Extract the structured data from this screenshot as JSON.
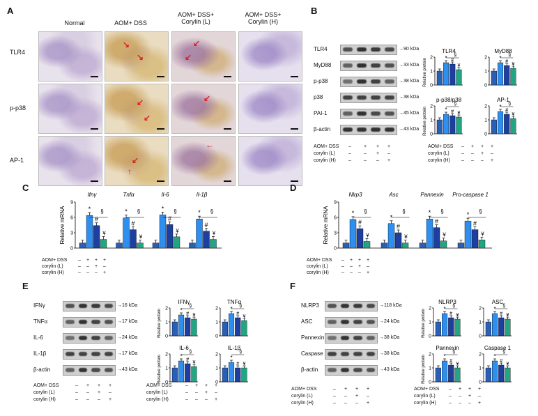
{
  "panels": {
    "A": "A",
    "B": "B",
    "C": "C",
    "D": "D",
    "E": "E",
    "F": "F"
  },
  "panelA": {
    "columns": [
      "Normal",
      "AOM+ DSS",
      "AOM+ DSS+ Corylin (L)",
      "AOM+ DSS+ Corylin (H)"
    ],
    "rows": [
      "TLR4",
      "p-p38",
      "AP-1"
    ]
  },
  "panelB": {
    "blots": [
      {
        "name": "TLR4",
        "kda": "90 kDa"
      },
      {
        "name": "MyD88",
        "kda": "33 kDa"
      },
      {
        "name": "p-p38",
        "kda": "38 kDa"
      },
      {
        "name": "p38",
        "kda": "38 kDa"
      },
      {
        "name": "PAI-1",
        "kda": "45 kDa"
      },
      {
        "name": "β-actin",
        "kda": "43 kDa"
      }
    ]
  },
  "panelE": {
    "blots": [
      {
        "name": "IFNγ",
        "kda": "16 kDa"
      },
      {
        "name": "TNFα",
        "kda": "17 kDa"
      },
      {
        "name": "IL-6",
        "kda": "24 kDa"
      },
      {
        "name": "IL-1β",
        "kda": "17 kDa"
      },
      {
        "name": "β-actin",
        "kda": "43 kDa"
      }
    ]
  },
  "panelF": {
    "blots": [
      {
        "name": "NLRP3",
        "kda": "118 kDa"
      },
      {
        "name": "ASC",
        "kda": "24 kDa"
      },
      {
        "name": "Pannexin",
        "kda": "38 kDa"
      },
      {
        "name": "Caspase 1",
        "kda": "38 kDa"
      },
      {
        "name": "β-actin",
        "kda": "43 kDa"
      }
    ]
  },
  "treatment": {
    "labels": [
      "AOM+ DSS",
      "corylin (L)",
      "corylin (H)"
    ],
    "signs": [
      [
        "–",
        "+",
        "+",
        "+"
      ],
      [
        "–",
        "–",
        "+",
        "–"
      ],
      [
        "–",
        "–",
        "–",
        "+"
      ]
    ]
  },
  "mrna_ylabel": "Relative mRNA",
  "protein_ylabel": "Relative protein",
  "sig": {
    "star": "*",
    "hash": "#",
    "yen": "¥",
    "sect": "§"
  },
  "colors": [
    "#2a5fb8",
    "#2f8fef",
    "#1d3fa0",
    "#23a583"
  ],
  "chart_data": [
    {
      "id": "B-TLR4",
      "type": "bar",
      "title": "TLR4",
      "categories": [
        "Normal",
        "AOM+DSS",
        "corylin (L)",
        "corylin (H)"
      ],
      "values": [
        1.0,
        1.6,
        1.5,
        1.1
      ],
      "ylim": [
        0,
        2
      ],
      "yticks": [
        0,
        1,
        2
      ]
    },
    {
      "id": "B-MyD88",
      "type": "bar",
      "title": "MyD88",
      "categories": [
        "Normal",
        "AOM+DSS",
        "corylin (L)",
        "corylin (H)"
      ],
      "values": [
        1.0,
        1.6,
        1.4,
        1.2
      ],
      "ylim": [
        0,
        2
      ],
      "yticks": [
        0,
        1,
        2
      ]
    },
    {
      "id": "B-pp38",
      "type": "bar",
      "title": "p-p38/p38",
      "categories": [
        "Normal",
        "AOM+DSS",
        "corylin (L)",
        "corylin (H)"
      ],
      "values": [
        1.0,
        1.4,
        1.3,
        1.2
      ],
      "ylim": [
        0,
        2
      ],
      "yticks": [
        0,
        1,
        2
      ]
    },
    {
      "id": "B-AP1",
      "type": "bar",
      "title": "AP-1",
      "categories": [
        "Normal",
        "AOM+DSS",
        "corylin (L)",
        "corylin (H)"
      ],
      "values": [
        1.0,
        1.6,
        1.4,
        1.1
      ],
      "ylim": [
        0,
        2
      ],
      "yticks": [
        0,
        1,
        2
      ]
    },
    {
      "id": "C",
      "type": "bar",
      "categories": [
        "Ifnγ",
        "Tnfα",
        "Il-6",
        "Il-1β"
      ],
      "series": [
        {
          "values": [
            1.0,
            6.4,
            4.4,
            1.7
          ]
        },
        {
          "values": [
            1.0,
            5.9,
            3.6,
            1.0
          ]
        },
        {
          "values": [
            1.0,
            6.5,
            4.6,
            2.2
          ]
        },
        {
          "values": [
            1.0,
            5.7,
            3.3,
            1.7
          ]
        }
      ],
      "ylim": [
        0,
        9
      ],
      "yticks": [
        0,
        3,
        6,
        9
      ]
    },
    {
      "id": "D",
      "type": "bar",
      "categories": [
        "Nlrp3",
        "Asc",
        "Pannexin",
        "Pro-caspase 1"
      ],
      "series": [
        {
          "values": [
            1.0,
            5.6,
            3.8,
            1.3
          ]
        },
        {
          "values": [
            1.0,
            4.8,
            3.0,
            1.0
          ]
        },
        {
          "values": [
            1.0,
            5.7,
            4.0,
            1.4
          ]
        },
        {
          "values": [
            1.0,
            5.3,
            3.6,
            1.6
          ]
        }
      ],
      "ylim": [
        0,
        9
      ],
      "yticks": [
        0,
        3,
        6,
        9
      ]
    },
    {
      "id": "E-IFNg",
      "type": "bar",
      "title": "IFNγ",
      "categories": [
        "Normal",
        "AOM+DSS",
        "corylin (L)",
        "corylin (H)"
      ],
      "values": [
        1.0,
        1.5,
        1.3,
        1.2
      ],
      "ylim": [
        0,
        2
      ],
      "yticks": [
        0,
        1,
        2
      ]
    },
    {
      "id": "E-TNFa",
      "type": "bar",
      "title": "TNFα",
      "categories": [
        "Normal",
        "AOM+DSS",
        "corylin (L)",
        "corylin (H)"
      ],
      "values": [
        1.0,
        1.6,
        1.3,
        1.1
      ],
      "ylim": [
        0,
        2
      ],
      "yticks": [
        0,
        1,
        2
      ]
    },
    {
      "id": "E-IL6",
      "type": "bar",
      "title": "IL-6",
      "categories": [
        "Normal",
        "AOM+DSS",
        "corylin (L)",
        "corylin (H)"
      ],
      "values": [
        1.0,
        1.5,
        1.3,
        1.1
      ],
      "ylim": [
        0,
        2
      ],
      "yticks": [
        0,
        1,
        2
      ]
    },
    {
      "id": "E-IL1b",
      "type": "bar",
      "title": "IL-1β",
      "categories": [
        "Normal",
        "AOM+DSS",
        "corylin (L)",
        "corylin (H)"
      ],
      "values": [
        1.0,
        1.4,
        1.0,
        1.0
      ],
      "ylim": [
        0,
        2
      ],
      "yticks": [
        0,
        1,
        2
      ]
    },
    {
      "id": "F-NLRP3",
      "type": "bar",
      "title": "NLRP3",
      "categories": [
        "Normal",
        "AOM+DSS",
        "corylin (L)",
        "corylin (H)"
      ],
      "values": [
        1.0,
        1.6,
        1.3,
        1.2
      ],
      "ylim": [
        0,
        2
      ],
      "yticks": [
        0,
        1,
        2
      ]
    },
    {
      "id": "F-ASC",
      "type": "bar",
      "title": "ASC",
      "categories": [
        "Normal",
        "AOM+DSS",
        "corylin (L)",
        "corylin (H)"
      ],
      "values": [
        1.0,
        1.6,
        1.3,
        1.2
      ],
      "ylim": [
        0,
        2
      ],
      "yticks": [
        0,
        1,
        2
      ]
    },
    {
      "id": "F-Pannexin",
      "type": "bar",
      "title": "Pannexin",
      "categories": [
        "Normal",
        "AOM+DSS",
        "corylin (L)",
        "corylin (H)"
      ],
      "values": [
        1.0,
        1.5,
        1.2,
        1.0
      ],
      "ylim": [
        0,
        2
      ],
      "yticks": [
        0,
        1,
        2
      ]
    },
    {
      "id": "F-Caspase1",
      "type": "bar",
      "title": "Caspase 1",
      "categories": [
        "Normal",
        "AOM+DSS",
        "corylin (L)",
        "corylin (H)"
      ],
      "values": [
        1.0,
        1.5,
        1.2,
        1.0
      ],
      "ylim": [
        0,
        2
      ],
      "yticks": [
        0,
        1,
        2
      ]
    }
  ]
}
